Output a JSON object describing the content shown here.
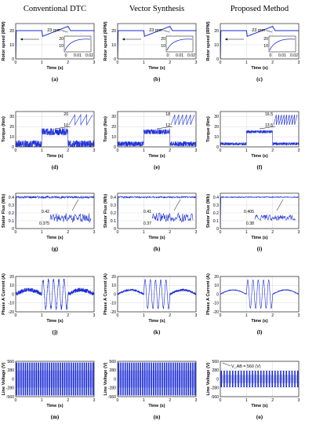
{
  "columns": [
    "Conventional DTC",
    "Vector Synthesis",
    "Proposed Method"
  ],
  "rows": [
    {
      "ylabel": "Rotor speed (RPM)",
      "xlabel": "Time (s)",
      "yticks": [
        "0",
        "10",
        "20"
      ],
      "xticks": [
        "0",
        "1",
        "2",
        "3"
      ],
      "panels": [
        {
          "letter": "(a)",
          "annotation": "23 rpm",
          "inset_yticks": [
            "20",
            "10"
          ],
          "inset_xticks": [
            "0",
            "0.01",
            "0.02"
          ]
        },
        {
          "letter": "(b)",
          "annotation": "23 rpm",
          "inset_yticks": [
            "20",
            "10"
          ],
          "inset_xticks": [
            "0",
            "0.01",
            "0.02"
          ]
        },
        {
          "letter": "(c)",
          "annotation": "23 rpm",
          "inset_yticks": [
            "20",
            "10"
          ],
          "inset_xticks": [
            "0",
            "0.01",
            "0.02"
          ]
        }
      ]
    },
    {
      "ylabel": "Torque (Nm)",
      "xlabel": "Time (s)",
      "yticks": [
        "0",
        "10",
        "20",
        "30"
      ],
      "xticks": [
        "0",
        "1",
        "2",
        "3"
      ],
      "panels": [
        {
          "letter": "(d)",
          "inset_yticks": [
            "20",
            "10"
          ]
        },
        {
          "letter": "(e)",
          "inset_yticks": [
            "18",
            "12"
          ]
        },
        {
          "letter": "(f)",
          "inset_yticks": [
            "16.5",
            "13.5"
          ]
        }
      ]
    },
    {
      "ylabel": "Stator Flux (Wb)",
      "xlabel": "Time (s)",
      "yticks": [
        "0",
        "0.1",
        "0.2",
        "0.3",
        "0.4"
      ],
      "xticks": [
        "0",
        "1",
        "2",
        "3"
      ],
      "panels": [
        {
          "letter": "(g)",
          "inset_yticks": [
            "0.42",
            "0.375"
          ]
        },
        {
          "letter": "(h)",
          "inset_yticks": [
            "0.41",
            "0.37"
          ]
        },
        {
          "letter": "(i)",
          "inset_yticks": [
            "0.405",
            "0.38"
          ]
        }
      ]
    },
    {
      "ylabel": "Phase A Current (A)",
      "xlabel": "Time (s)",
      "yticks": [
        "-20",
        "-10",
        "0",
        "10",
        "20"
      ],
      "xticks": [
        "0",
        "1",
        "2",
        "3"
      ],
      "panels": [
        {
          "letter": "(j)"
        },
        {
          "letter": "(k)"
        },
        {
          "letter": "(l)"
        }
      ]
    },
    {
      "ylabel": "Line Voltage (V)",
      "xlabel": "Time (s)",
      "yticks": [
        "-560",
        "-280",
        "0",
        "280",
        "560"
      ],
      "xticks": [
        "0",
        "1",
        "2",
        "3"
      ],
      "panels": [
        {
          "letter": "(m)"
        },
        {
          "letter": "(n)"
        },
        {
          "letter": "(o)",
          "annotation": "V_AB = 560 (V)"
        }
      ]
    }
  ],
  "chart_data": [
    {
      "type": "line",
      "panel": "a",
      "xlim": [
        0,
        3
      ],
      "ylim": [
        0,
        25
      ],
      "x": [
        0,
        0.02,
        1,
        1.03,
        1.5,
        2,
        2.05,
        3
      ],
      "y": [
        0,
        20,
        20,
        16,
        17.5,
        23,
        20,
        20
      ]
    },
    {
      "type": "line",
      "panel": "b",
      "xlim": [
        0,
        3
      ],
      "ylim": [
        0,
        25
      ],
      "x": [
        0,
        0.02,
        1,
        1.03,
        1.5,
        2,
        2.05,
        3
      ],
      "y": [
        0,
        20,
        20,
        16,
        17.5,
        23,
        20,
        20
      ]
    },
    {
      "type": "line",
      "panel": "c",
      "xlim": [
        0,
        3
      ],
      "ylim": [
        0,
        25
      ],
      "x": [
        0,
        0.02,
        1,
        1.03,
        1.5,
        2,
        2.05,
        3
      ],
      "y": [
        0,
        20,
        20,
        16,
        17.5,
        23,
        20,
        20
      ]
    },
    {
      "type": "line",
      "panel": "d",
      "xlim": [
        0,
        3
      ],
      "ylim": [
        0,
        35
      ],
      "x": [
        0,
        1,
        1,
        2,
        2,
        3
      ],
      "y": [
        3,
        3,
        15,
        15,
        3,
        3
      ],
      "ripple_band": [
        10,
        20
      ]
    },
    {
      "type": "line",
      "panel": "e",
      "xlim": [
        0,
        3
      ],
      "ylim": [
        0,
        35
      ],
      "x": [
        0,
        1,
        1,
        2,
        2,
        3
      ],
      "y": [
        3,
        3,
        15,
        15,
        3,
        3
      ],
      "ripple_band": [
        12,
        18
      ]
    },
    {
      "type": "line",
      "panel": "f",
      "xlim": [
        0,
        3
      ],
      "ylim": [
        0,
        35
      ],
      "x": [
        0,
        1,
        1,
        2,
        2,
        3
      ],
      "y": [
        3,
        3,
        15,
        15,
        3,
        3
      ],
      "ripple_band": [
        13.5,
        16.5
      ]
    },
    {
      "type": "line",
      "panel": "g",
      "xlim": [
        0,
        3
      ],
      "ylim": [
        0,
        0.45
      ],
      "x": [
        0,
        0.02,
        3
      ],
      "y": [
        0,
        0.4,
        0.4
      ],
      "ripple_band": [
        0.375,
        0.42
      ]
    },
    {
      "type": "line",
      "panel": "h",
      "xlim": [
        0,
        3
      ],
      "ylim": [
        0,
        0.45
      ],
      "x": [
        0,
        0.02,
        3
      ],
      "y": [
        0,
        0.4,
        0.4
      ],
      "ripple_band": [
        0.37,
        0.41
      ]
    },
    {
      "type": "line",
      "panel": "i",
      "xlim": [
        0,
        3
      ],
      "ylim": [
        0,
        0.45
      ],
      "x": [
        0,
        0.02,
        3
      ],
      "y": [
        0,
        0.4,
        0.4
      ],
      "ripple_band": [
        0.38,
        0.405
      ]
    },
    {
      "type": "line",
      "panel": "j",
      "xlim": [
        0,
        3
      ],
      "ylim": [
        -25,
        25
      ],
      "peak_before": 6,
      "peak_during": 20,
      "peak_after": 6
    },
    {
      "type": "line",
      "panel": "k",
      "xlim": [
        0,
        3
      ],
      "ylim": [
        -25,
        25
      ],
      "peak_before": 6,
      "peak_during": 20,
      "peak_after": 6
    },
    {
      "type": "line",
      "panel": "l",
      "xlim": [
        0,
        3
      ],
      "ylim": [
        -25,
        25
      ],
      "peak_before": 6,
      "peak_during": 20,
      "peak_after": 6
    },
    {
      "type": "line",
      "panel": "m",
      "xlim": [
        0,
        3
      ],
      "ylim": [
        -600,
        600
      ],
      "levels": [
        -560,
        560
      ]
    },
    {
      "type": "line",
      "panel": "n",
      "xlim": [
        0,
        3
      ],
      "ylim": [
        -600,
        600
      ],
      "levels": [
        -560,
        560
      ]
    },
    {
      "type": "line",
      "panel": "o",
      "xlim": [
        0,
        3
      ],
      "ylim": [
        -600,
        600
      ],
      "levels": [
        -280,
        280
      ]
    }
  ]
}
